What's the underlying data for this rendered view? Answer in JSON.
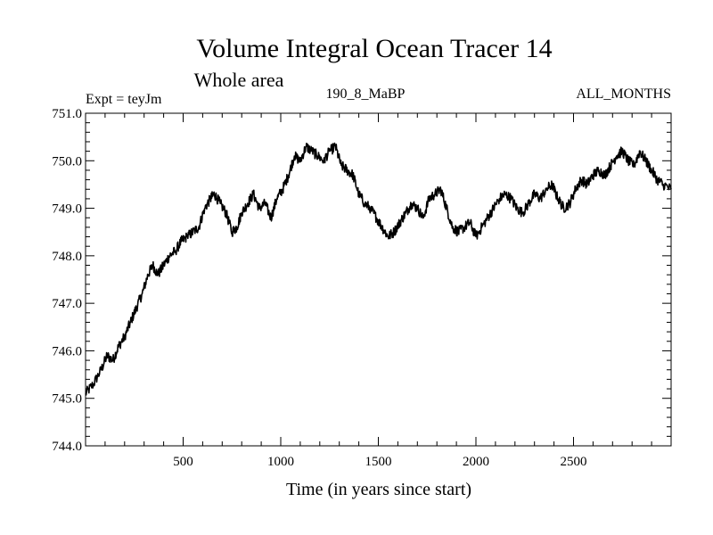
{
  "chart_data": {
    "type": "line",
    "title": "Volume Integral Ocean Tracer 14",
    "subtitle": "Whole area",
    "left_label": "Expt = teyJm",
    "center_label": "190_8_MaBP",
    "right_label": "ALL_MONTHS",
    "xlabel": "Time (in years since start)",
    "ylabel": "",
    "xlim": [
      0,
      3000
    ],
    "ylim": [
      744.0,
      751.0
    ],
    "x_ticks": [
      500,
      1000,
      1500,
      2000,
      2500
    ],
    "x_tick_labels": [
      "500",
      "1000",
      "1500",
      "2000",
      "2500"
    ],
    "y_ticks": [
      744.0,
      745.0,
      746.0,
      747.0,
      748.0,
      749.0,
      750.0,
      751.0
    ],
    "y_tick_labels": [
      "744.0",
      "745.0",
      "746.0",
      "747.0",
      "748.0",
      "749.0",
      "750.0",
      "751.0"
    ],
    "series": [
      {
        "name": "Volume Integral Ocean Tracer 14",
        "color": "#000000",
        "x": [
          0,
          40,
          80,
          110,
          140,
          170,
          200,
          230,
          260,
          290,
          320,
          345,
          370,
          400,
          430,
          460,
          490,
          520,
          550,
          580,
          610,
          640,
          660,
          690,
          720,
          750,
          775,
          800,
          830,
          860,
          890,
          920,
          950,
          980,
          1010,
          1040,
          1070,
          1100,
          1130,
          1160,
          1190,
          1220,
          1250,
          1280,
          1310,
          1340,
          1370,
          1400,
          1430,
          1460,
          1490,
          1520,
          1550,
          1580,
          1610,
          1640,
          1670,
          1700,
          1730,
          1760,
          1790,
          1820,
          1850,
          1880,
          1910,
          1940,
          1970,
          2000,
          2030,
          2060,
          2090,
          2120,
          2150,
          2180,
          2210,
          2240,
          2270,
          2300,
          2330,
          2360,
          2390,
          2420,
          2450,
          2480,
          2510,
          2540,
          2570,
          2600,
          2630,
          2660,
          2690,
          2720,
          2750,
          2780,
          2810,
          2840,
          2870,
          2900,
          2930,
          2960,
          3000
        ],
        "values": [
          745.1,
          745.3,
          745.6,
          745.9,
          745.8,
          746.1,
          746.3,
          746.6,
          746.9,
          747.2,
          747.6,
          747.8,
          747.6,
          747.8,
          748.0,
          748.1,
          748.3,
          748.4,
          748.5,
          748.6,
          749.0,
          749.2,
          749.3,
          749.1,
          748.9,
          748.5,
          748.6,
          748.9,
          749.1,
          749.3,
          749.0,
          749.1,
          748.8,
          749.2,
          749.4,
          749.7,
          750.1,
          750.0,
          750.3,
          750.2,
          750.1,
          750.0,
          750.2,
          750.3,
          749.9,
          749.8,
          749.7,
          749.3,
          749.1,
          749.0,
          748.8,
          748.6,
          748.4,
          748.5,
          748.7,
          748.9,
          749.1,
          749.0,
          748.8,
          749.2,
          749.3,
          749.4,
          749.0,
          748.6,
          748.5,
          748.6,
          748.7,
          748.4,
          748.6,
          748.8,
          749.0,
          749.2,
          749.3,
          749.2,
          749.0,
          748.9,
          749.1,
          749.3,
          749.2,
          749.4,
          749.5,
          749.2,
          749.0,
          749.1,
          749.4,
          749.6,
          749.5,
          749.7,
          749.8,
          749.7,
          749.9,
          750.1,
          750.2,
          750.0,
          749.9,
          750.2,
          750.0,
          749.8,
          749.6,
          749.5,
          749.4
        ]
      }
    ]
  }
}
